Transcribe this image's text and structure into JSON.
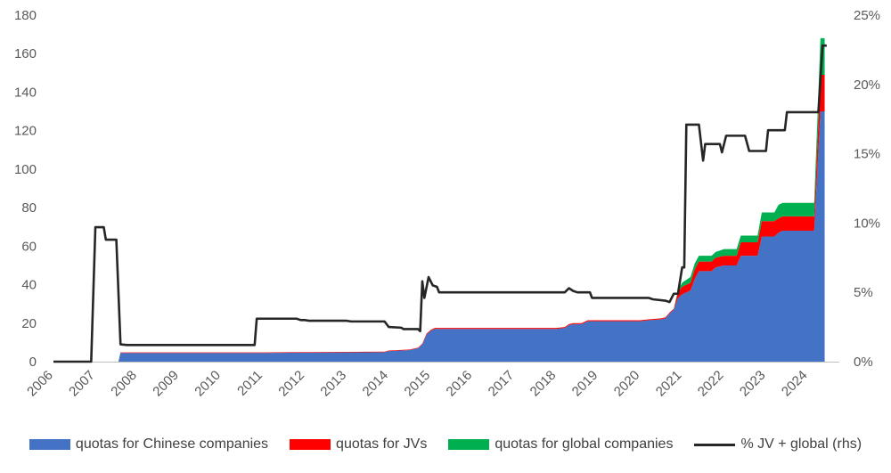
{
  "chart_data": {
    "type": "area",
    "title": "",
    "xlabel": "",
    "ylabel": "",
    "ylabel_right": "",
    "ylim": [
      0,
      180
    ],
    "ylim_right": [
      0,
      25
    ],
    "y_ticks": [
      "0",
      "20",
      "40",
      "60",
      "80",
      "100",
      "120",
      "140",
      "160",
      "180"
    ],
    "y_ticks_right": [
      "0%",
      "5%",
      "10%",
      "15%",
      "20%",
      "25%"
    ],
    "x_ticks": [
      "2006",
      "2007",
      "2008",
      "2009",
      "2010",
      "2011",
      "2012",
      "2013",
      "2014",
      "2015",
      "2016",
      "2017",
      "2018",
      "2019",
      "2020",
      "2021",
      "2022",
      "2023",
      "2024"
    ],
    "xlim": [
      2006.0,
      2024.75
    ],
    "grid": false,
    "legend_position": "bottom",
    "stacked_series": [
      {
        "name": "quotas for Chinese companies",
        "color": "#4472C4",
        "points": [
          [
            2007.55,
            0
          ],
          [
            2007.6,
            4.5
          ],
          [
            2008.0,
            4.5
          ],
          [
            2010.0,
            4.5
          ],
          [
            2011.0,
            4.5
          ],
          [
            2012.0,
            4.7
          ],
          [
            2013.0,
            4.8
          ],
          [
            2013.9,
            4.9
          ],
          [
            2014.0,
            5.5
          ],
          [
            2014.5,
            6
          ],
          [
            2014.7,
            7
          ],
          [
            2014.8,
            9
          ],
          [
            2014.9,
            14
          ],
          [
            2015.0,
            16
          ],
          [
            2015.1,
            17
          ],
          [
            2015.5,
            17
          ],
          [
            2016.0,
            17
          ],
          [
            2017.0,
            17
          ],
          [
            2018.0,
            17
          ],
          [
            2018.2,
            17.5
          ],
          [
            2018.3,
            19
          ],
          [
            2018.4,
            19.5
          ],
          [
            2018.6,
            19.5
          ],
          [
            2018.75,
            21
          ],
          [
            2019.0,
            21
          ],
          [
            2020.0,
            21
          ],
          [
            2020.2,
            21.5
          ],
          [
            2020.5,
            22
          ],
          [
            2020.6,
            22.5
          ],
          [
            2020.7,
            25
          ],
          [
            2020.8,
            27
          ],
          [
            2020.9,
            33
          ],
          [
            2021.0,
            35
          ],
          [
            2021.2,
            37
          ],
          [
            2021.3,
            43
          ],
          [
            2021.4,
            47
          ],
          [
            2021.7,
            47
          ],
          [
            2021.8,
            49
          ],
          [
            2022.0,
            50
          ],
          [
            2022.3,
            50
          ],
          [
            2022.4,
            55
          ],
          [
            2022.8,
            55
          ],
          [
            2022.9,
            65
          ],
          [
            2023.2,
            65
          ],
          [
            2023.3,
            67
          ],
          [
            2023.4,
            68
          ],
          [
            2024.15,
            68
          ],
          [
            2024.3,
            130
          ],
          [
            2024.4,
            130
          ]
        ]
      },
      {
        "name": "quotas for JVs",
        "color": "#FF0000",
        "points": [
          [
            2007.55,
            0
          ],
          [
            2007.6,
            0.3
          ],
          [
            2008.0,
            0.3
          ],
          [
            2010.0,
            0.3
          ],
          [
            2011.0,
            0.3
          ],
          [
            2012.0,
            0.3
          ],
          [
            2013.0,
            0.3
          ],
          [
            2013.9,
            0.3
          ],
          [
            2014.0,
            0.3
          ],
          [
            2014.5,
            0.3
          ],
          [
            2014.7,
            0.3
          ],
          [
            2014.8,
            0.4
          ],
          [
            2014.9,
            0.5
          ],
          [
            2015.0,
            0.5
          ],
          [
            2015.1,
            0.5
          ],
          [
            2015.5,
            0.5
          ],
          [
            2016.0,
            0.5
          ],
          [
            2017.0,
            0.5
          ],
          [
            2018.0,
            0.5
          ],
          [
            2018.2,
            0.5
          ],
          [
            2018.3,
            0.5
          ],
          [
            2018.4,
            0.5
          ],
          [
            2018.6,
            0.5
          ],
          [
            2018.75,
            0.5
          ],
          [
            2019.0,
            0.5
          ],
          [
            2020.0,
            0.5
          ],
          [
            2020.2,
            0.5
          ],
          [
            2020.5,
            0.5
          ],
          [
            2020.6,
            0.5
          ],
          [
            2020.7,
            0.5
          ],
          [
            2020.8,
            0.5
          ],
          [
            2020.9,
            3
          ],
          [
            2021.0,
            4
          ],
          [
            2021.2,
            4
          ],
          [
            2021.3,
            5
          ],
          [
            2021.4,
            5
          ],
          [
            2021.7,
            5
          ],
          [
            2021.8,
            5
          ],
          [
            2022.0,
            5
          ],
          [
            2022.3,
            5
          ],
          [
            2022.4,
            7
          ],
          [
            2022.8,
            7
          ],
          [
            2022.9,
            8
          ],
          [
            2023.2,
            8
          ],
          [
            2023.3,
            7.5
          ],
          [
            2023.4,
            7.5
          ],
          [
            2024.15,
            7.5
          ],
          [
            2024.3,
            19
          ],
          [
            2024.4,
            19
          ]
        ]
      },
      {
        "name": "quotas for global companies",
        "color": "#00B050",
        "points": [
          [
            2007.55,
            0
          ],
          [
            2007.6,
            0
          ],
          [
            2008.0,
            0
          ],
          [
            2010.0,
            0
          ],
          [
            2011.0,
            0
          ],
          [
            2012.0,
            0
          ],
          [
            2013.0,
            0
          ],
          [
            2013.9,
            0
          ],
          [
            2014.0,
            0
          ],
          [
            2014.5,
            0
          ],
          [
            2014.7,
            0
          ],
          [
            2014.8,
            0
          ],
          [
            2014.9,
            0
          ],
          [
            2015.0,
            0
          ],
          [
            2015.1,
            0
          ],
          [
            2015.5,
            0
          ],
          [
            2016.0,
            0
          ],
          [
            2017.0,
            0
          ],
          [
            2018.0,
            0
          ],
          [
            2018.2,
            0
          ],
          [
            2018.3,
            0
          ],
          [
            2018.4,
            0
          ],
          [
            2018.6,
            0
          ],
          [
            2018.75,
            0
          ],
          [
            2019.0,
            0
          ],
          [
            2020.0,
            0
          ],
          [
            2020.2,
            0
          ],
          [
            2020.5,
            0
          ],
          [
            2020.6,
            0
          ],
          [
            2020.7,
            0
          ],
          [
            2020.8,
            0
          ],
          [
            2020.9,
            1
          ],
          [
            2021.0,
            2
          ],
          [
            2021.2,
            3
          ],
          [
            2021.3,
            3
          ],
          [
            2021.4,
            3
          ],
          [
            2021.7,
            3
          ],
          [
            2021.8,
            3
          ],
          [
            2022.0,
            3.5
          ],
          [
            2022.3,
            3.5
          ],
          [
            2022.4,
            3.5
          ],
          [
            2022.8,
            3.5
          ],
          [
            2022.9,
            4.5
          ],
          [
            2023.2,
            4.5
          ],
          [
            2023.3,
            7
          ],
          [
            2023.4,
            7
          ],
          [
            2024.15,
            7
          ],
          [
            2024.3,
            19
          ],
          [
            2024.4,
            19
          ]
        ]
      }
    ],
    "line_series": {
      "name": "% JV + global (rhs)",
      "color": "#262626",
      "axis": "right",
      "points": [
        [
          2006.0,
          0
        ],
        [
          2006.9,
          0
        ],
        [
          2007.0,
          9.7
        ],
        [
          2007.2,
          9.7
        ],
        [
          2007.25,
          8.8
        ],
        [
          2007.5,
          8.8
        ],
        [
          2007.6,
          1.25
        ],
        [
          2007.75,
          1.2
        ],
        [
          2010.0,
          1.2
        ],
        [
          2010.1,
          1.2
        ],
        [
          2010.8,
          1.2
        ],
        [
          2010.85,
          3.1
        ],
        [
          2011.8,
          3.1
        ],
        [
          2011.9,
          3.0
        ],
        [
          2012.0,
          3.0
        ],
        [
          2012.1,
          2.95
        ],
        [
          2013.0,
          2.95
        ],
        [
          2013.1,
          2.9
        ],
        [
          2013.9,
          2.9
        ],
        [
          2014.0,
          2.5
        ],
        [
          2014.3,
          2.45
        ],
        [
          2014.35,
          2.35
        ],
        [
          2014.7,
          2.35
        ],
        [
          2014.75,
          2.2
        ],
        [
          2014.8,
          5.8
        ],
        [
          2014.85,
          4.6
        ],
        [
          2014.95,
          6.1
        ],
        [
          2015.05,
          5.5
        ],
        [
          2015.15,
          5.4
        ],
        [
          2015.2,
          5.0
        ],
        [
          2018.2,
          5.0
        ],
        [
          2018.3,
          5.3
        ],
        [
          2018.4,
          5.1
        ],
        [
          2018.5,
          5.0
        ],
        [
          2018.8,
          5.0
        ],
        [
          2018.85,
          4.6
        ],
        [
          2020.2,
          4.6
        ],
        [
          2020.3,
          4.5
        ],
        [
          2020.6,
          4.4
        ],
        [
          2020.7,
          4.3
        ],
        [
          2020.8,
          4.9
        ],
        [
          2020.9,
          4.9
        ],
        [
          2021.0,
          6.8
        ],
        [
          2021.05,
          6.8
        ],
        [
          2021.1,
          17.1
        ],
        [
          2021.4,
          17.1
        ],
        [
          2021.5,
          14.5
        ],
        [
          2021.55,
          15.7
        ],
        [
          2021.6,
          15.7
        ],
        [
          2021.9,
          15.7
        ],
        [
          2021.95,
          15.1
        ],
        [
          2022.05,
          16.3
        ],
        [
          2022.5,
          16.3
        ],
        [
          2022.6,
          15.2
        ],
        [
          2023.0,
          15.2
        ],
        [
          2023.05,
          16.7
        ],
        [
          2023.45,
          16.7
        ],
        [
          2023.5,
          18.0
        ],
        [
          2024.25,
          18.0
        ],
        [
          2024.35,
          22.8
        ],
        [
          2024.45,
          22.8
        ]
      ]
    }
  },
  "legend": {
    "items": [
      {
        "label": "quotas for Chinese companies",
        "color": "#4472C4",
        "kind": "box"
      },
      {
        "label": "quotas for JVs",
        "color": "#FF0000",
        "kind": "box"
      },
      {
        "label": "quotas for global companies",
        "color": "#00B050",
        "kind": "box"
      },
      {
        "label": "% JV + global (rhs)",
        "color": "#262626",
        "kind": "line"
      }
    ]
  }
}
